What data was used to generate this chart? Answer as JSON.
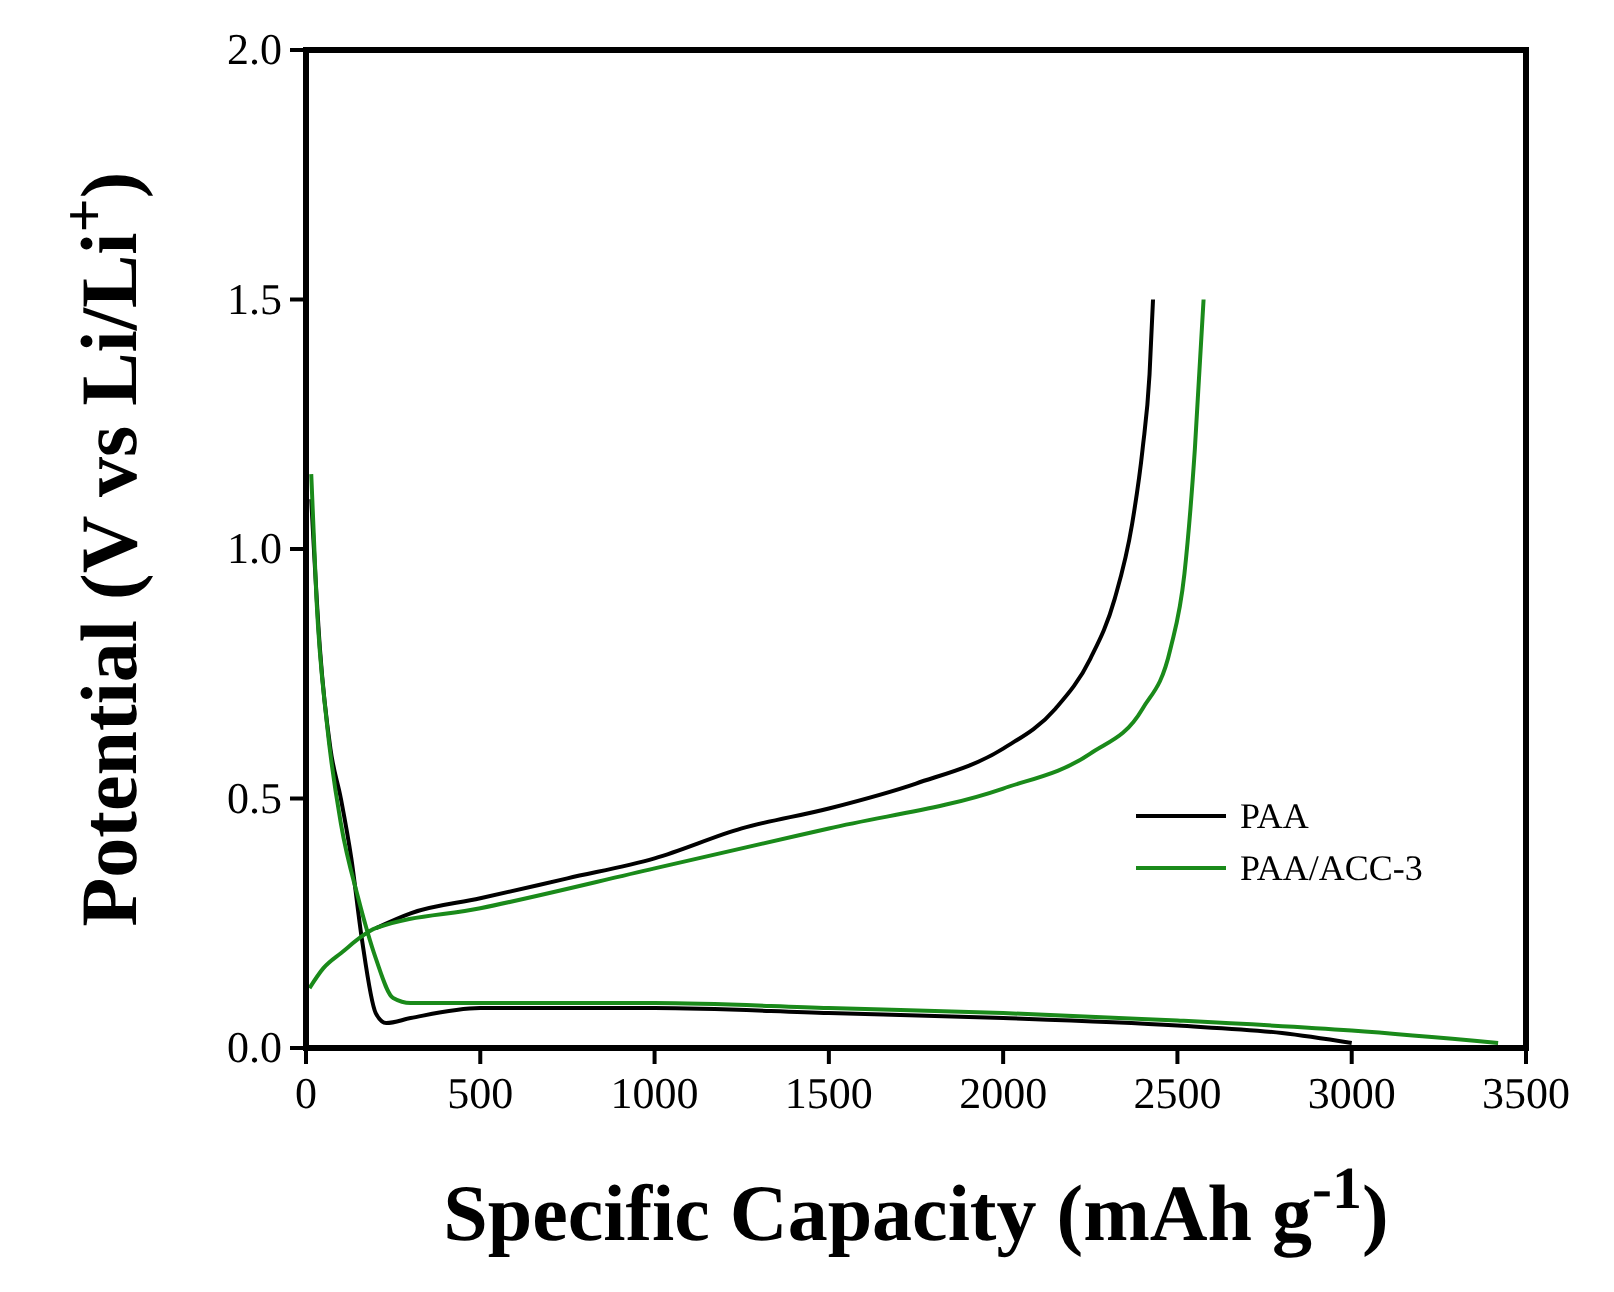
{
  "chart_data": {
    "type": "line",
    "xlabel": "Specific Capacity (mAh g$^{-1}$)",
    "ylabel": "Potential (V vs Li/Li$^{+}$)",
    "xlim": [
      0,
      3500
    ],
    "xticks": [
      0,
      500,
      1000,
      1500,
      2000,
      2500,
      3000,
      3500
    ],
    "ylim": [
      0,
      2.0
    ],
    "yticks": [
      {
        "value": 0,
        "label": "0.0"
      },
      0.5,
      {
        "value": 1,
        "label": "1.0"
      },
      1.5,
      {
        "value": 2,
        "label": "2.0"
      }
    ],
    "grid": false,
    "legend": "right",
    "marker": "none",
    "line_style": "solid",
    "series": [
      {
        "name": "PAA",
        "color": "#000000",
        "x": [
          15,
          40,
          70,
          100,
          130,
          160,
          200,
          230,
          300,
          500,
          1000,
          1500,
          2000,
          2500,
          2800,
          3000,
          null,
          200,
          300,
          500,
          750,
          1000,
          1250,
          1500,
          1750,
          2000,
          2150,
          2250,
          2320,
          2370,
          2400,
          2420,
          2430
        ],
        "values": [
          1.1,
          0.8,
          0.6,
          0.5,
          0.38,
          0.22,
          0.07,
          0.05,
          0.06,
          0.08,
          0.08,
          0.07,
          0.06,
          0.045,
          0.03,
          0.01,
          null,
          0.24,
          0.27,
          0.3,
          0.34,
          0.38,
          0.44,
          0.48,
          0.53,
          0.6,
          0.68,
          0.78,
          0.9,
          1.05,
          1.2,
          1.35,
          1.5
        ]
      },
      {
        "name": "PAA/ACC-3",
        "color": "#1a8a1a",
        "x": [
          15,
          30,
          60,
          100,
          150,
          200,
          250,
          300,
          500,
          1000,
          1500,
          2000,
          2500,
          3000,
          3420,
          null,
          10,
          50,
          100,
          200,
          500,
          1000,
          1500,
          2000,
          2250,
          2400,
          2480,
          2520,
          2550,
          2575
        ],
        "values": [
          1.15,
          0.9,
          0.65,
          0.45,
          0.3,
          0.18,
          0.1,
          0.09,
          0.09,
          0.09,
          0.08,
          0.07,
          0.055,
          0.035,
          0.01,
          null,
          0.12,
          0.16,
          0.19,
          0.24,
          0.28,
          0.36,
          0.44,
          0.52,
          0.59,
          0.68,
          0.8,
          0.95,
          1.2,
          1.5
        ]
      }
    ]
  }
}
